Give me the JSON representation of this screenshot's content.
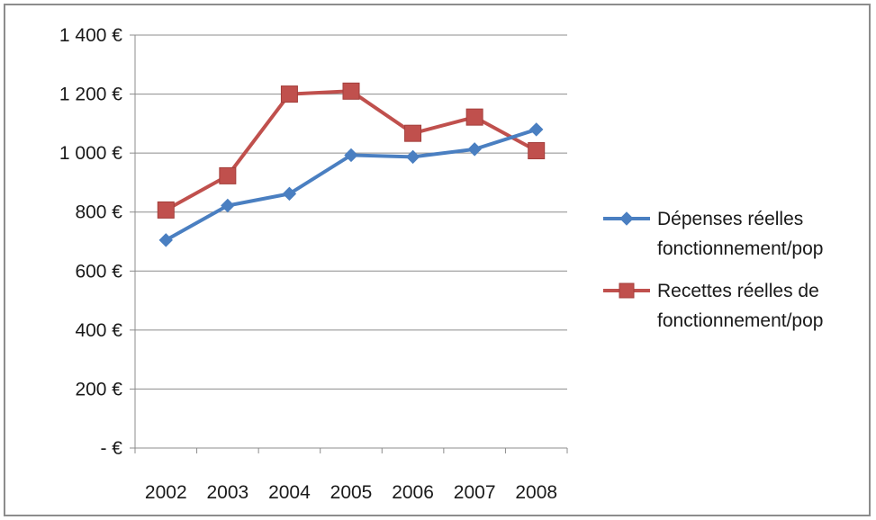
{
  "chart_data": {
    "type": "line",
    "categories": [
      "2002",
      "2003",
      "2004",
      "2005",
      "2006",
      "2007",
      "2008"
    ],
    "series": [
      {
        "name": "Dépenses réelles fonctionnement/pop",
        "values": [
          705,
          822,
          862,
          993,
          987,
          1013,
          1080
        ],
        "color": "#4a7fc1",
        "marker": "diamond"
      },
      {
        "name": "Recettes réelles de fonctionnement/pop",
        "values": [
          807,
          923,
          1200,
          1210,
          1067,
          1122,
          1008
        ],
        "color": "#c0504d",
        "marker": "square"
      }
    ],
    "ylim": [
      0,
      1400
    ],
    "yticks": [
      {
        "value": 0,
        "label": "-   €"
      },
      {
        "value": 200,
        "label": "200 €"
      },
      {
        "value": 400,
        "label": "400 €"
      },
      {
        "value": 600,
        "label": "600 €"
      },
      {
        "value": 800,
        "label": "800 €"
      },
      {
        "value": 1000,
        "label": "1 000 €"
      },
      {
        "value": 1200,
        "label": "1 200 €"
      },
      {
        "value": 1400,
        "label": "1 400 €"
      }
    ],
    "grid": true,
    "legend": "right"
  }
}
